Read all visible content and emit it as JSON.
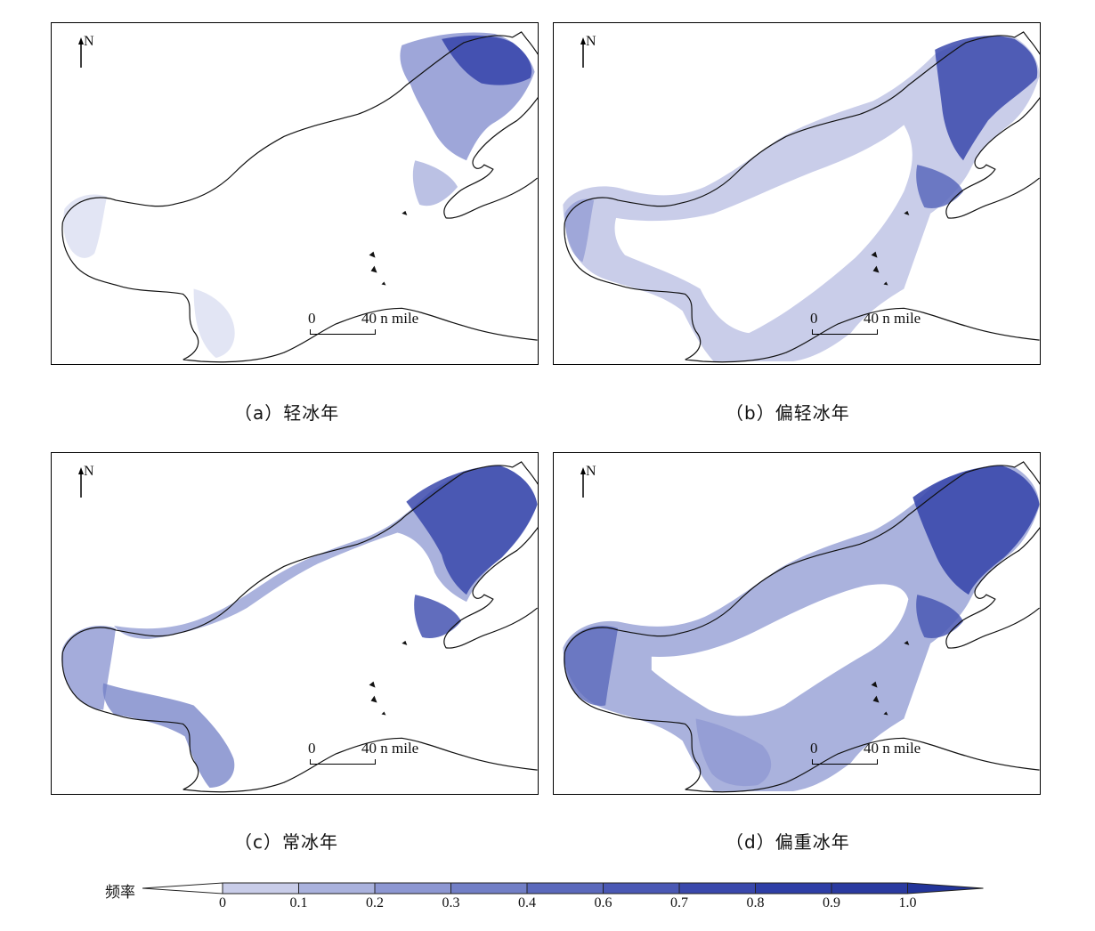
{
  "panels": [
    {
      "compass": "N",
      "scale_zero": "0",
      "scale_distance": "40 n mile",
      "caption": "（a）轻冰年"
    },
    {
      "compass": "N",
      "scale_zero": "0",
      "scale_distance": "40 n mile",
      "caption": "（b）偏轻冰年"
    },
    {
      "compass": "N",
      "scale_zero": "0",
      "scale_distance": "40 n mile",
      "caption": "（c）常冰年"
    },
    {
      "compass": "N",
      "scale_zero": "0",
      "scale_distance": "40 n mile",
      "caption": "（d）偏重冰年"
    }
  ],
  "legend": {
    "title": "频率",
    "ticks": [
      "0",
      "0.1",
      "0.2",
      "0.3",
      "0.4",
      "0.6",
      "0.7",
      "0.8",
      "0.9",
      "1.0"
    ],
    "colors": [
      "#ffffff",
      "#c9cde9",
      "#aab2dd",
      "#8d97d2",
      "#727fc6",
      "#5b69bc",
      "#4a58b4",
      "#3a48ac",
      "#2e3ea6",
      "#2a3aa0",
      "#22349a"
    ]
  },
  "colors": {
    "ice_light": "#c9cde9",
    "ice_mid": "#7d89cc",
    "ice_dark": "#2e3ea6",
    "coastline": "#111111"
  }
}
